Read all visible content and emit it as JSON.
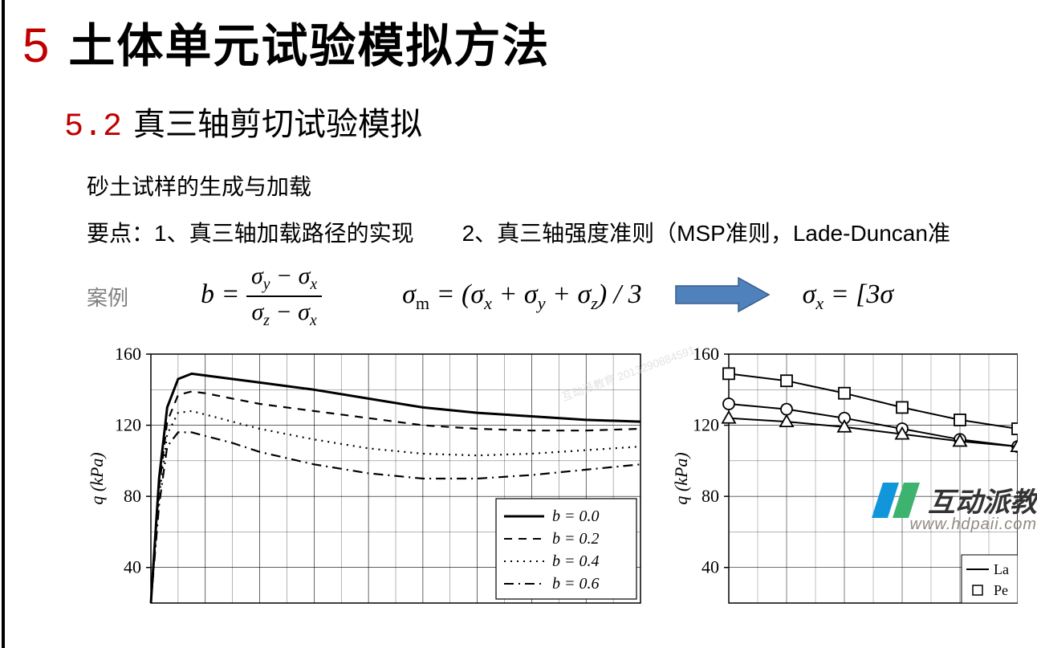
{
  "heading": {
    "number": "5",
    "title": "土体单元试验模拟方法",
    "sub_number": "5.2",
    "sub_title": "真三轴剪切试验模拟"
  },
  "body": {
    "line1": "砂土试样的生成与加载",
    "point1_label": "要点：1、真三轴加载路径的实现",
    "point2_label": "2、真三轴强度准则（MSP准则，Lade-Duncan准",
    "case_label": "案例"
  },
  "equations": {
    "b_lhs": "b =",
    "b_num": "σ_y − σ_x",
    "b_den": "σ_z − σ_x",
    "sigma_m": "σ_m = (σ_x + σ_y + σ_z) / 3",
    "sigma_x": "σ_x = [3σ"
  },
  "arrow": {
    "fill": "#4f81bd",
    "stroke": "#385d8a",
    "width": 120,
    "height": 50
  },
  "chart_left": {
    "type": "line",
    "x_range": [
      0,
      18
    ],
    "y_range": [
      20,
      160
    ],
    "y_ticks": [
      40,
      80,
      120,
      160
    ],
    "y_label": "q (kPa)",
    "grid_color": "#000000",
    "background": "#ffffff",
    "legend_items": [
      {
        "style": "solid",
        "label": "b = 0.0"
      },
      {
        "style": "dash",
        "label": "b = 0.2"
      },
      {
        "style": "dot",
        "label": "b = 0.4"
      },
      {
        "style": "dashdot",
        "label": "b = 0.6"
      }
    ],
    "series": [
      {
        "style": "solid",
        "x": [
          0,
          0.3,
          0.6,
          1,
          1.5,
          2,
          3,
          4,
          6,
          8,
          10,
          12,
          14,
          16,
          18
        ],
        "y": [
          20,
          90,
          130,
          146,
          149,
          148,
          146,
          144,
          140,
          135,
          130,
          127,
          125,
          123,
          122
        ]
      },
      {
        "style": "dash",
        "x": [
          0,
          0.3,
          0.6,
          1,
          1.5,
          2,
          3,
          4,
          6,
          8,
          10,
          12,
          14,
          16,
          18
        ],
        "y": [
          20,
          85,
          122,
          137,
          139,
          138,
          135,
          132,
          128,
          124,
          120,
          118,
          117,
          117,
          118
        ]
      },
      {
        "style": "dot",
        "x": [
          0,
          0.3,
          0.6,
          1,
          1.5,
          2,
          3,
          4,
          6,
          8,
          10,
          12,
          14,
          16,
          18
        ],
        "y": [
          20,
          80,
          115,
          127,
          128,
          126,
          122,
          118,
          112,
          107,
          104,
          103,
          104,
          106,
          108
        ]
      },
      {
        "style": "dashdot",
        "x": [
          0,
          0.3,
          0.6,
          1,
          1.5,
          2,
          3,
          4,
          6,
          8,
          10,
          12,
          14,
          16,
          18
        ],
        "y": [
          20,
          75,
          108,
          116,
          116,
          114,
          110,
          105,
          98,
          93,
          90,
          90,
          92,
          95,
          98
        ]
      }
    ]
  },
  "chart_right": {
    "type": "line-marker",
    "x_range": [
      0,
      1.0
    ],
    "y_range": [
      20,
      160
    ],
    "y_ticks": [
      40,
      80,
      120,
      160
    ],
    "y_label": "q (kPa)",
    "grid_color": "#000000",
    "legend_items": [
      {
        "marker": "none",
        "label": "La"
      },
      {
        "marker": "square",
        "label": "Pe"
      }
    ],
    "series": [
      {
        "marker": "square",
        "x": [
          0,
          0.2,
          0.4,
          0.6,
          0.8,
          1.0
        ],
        "y": [
          149,
          145,
          138,
          130,
          123,
          118
        ]
      },
      {
        "marker": "circle",
        "x": [
          0,
          0.2,
          0.4,
          0.6,
          0.8,
          1.0
        ],
        "y": [
          132,
          129,
          124,
          118,
          112,
          108
        ]
      },
      {
        "marker": "triangle",
        "x": [
          0,
          0.2,
          0.4,
          0.6,
          0.8,
          1.0
        ],
        "y": [
          124,
          122,
          119,
          115,
          111,
          108
        ]
      }
    ]
  },
  "watermark": "互动派教育\\n2013290884591",
  "logo": {
    "text": "互动派教",
    "url": "www.hdpaii.com",
    "blue": "#1296db",
    "green": "#3eb370"
  }
}
